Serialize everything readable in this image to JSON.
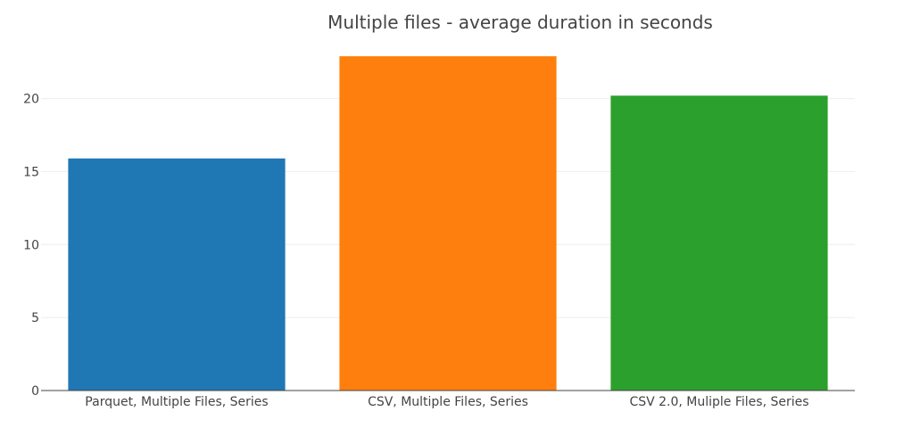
{
  "chart_data": {
    "type": "bar",
    "title": "Multiple files - average duration in seconds",
    "categories": [
      "Parquet, Multiple Files, Series",
      "CSV, Multiple Files, Series",
      "CSV 2.0, Muliple Files, Series"
    ],
    "values": [
      15.9,
      22.9,
      20.2
    ],
    "colors": [
      "#1f77b4",
      "#ff7f0e",
      "#2ca02c"
    ],
    "xlabel": "",
    "ylabel": "",
    "ylim": [
      0,
      23.7
    ],
    "yticks": [
      0,
      5,
      10,
      15,
      20
    ],
    "ytick_labels": [
      "0",
      "5",
      "10",
      "15",
      "20"
    ],
    "grid": true,
    "legend": "none"
  }
}
